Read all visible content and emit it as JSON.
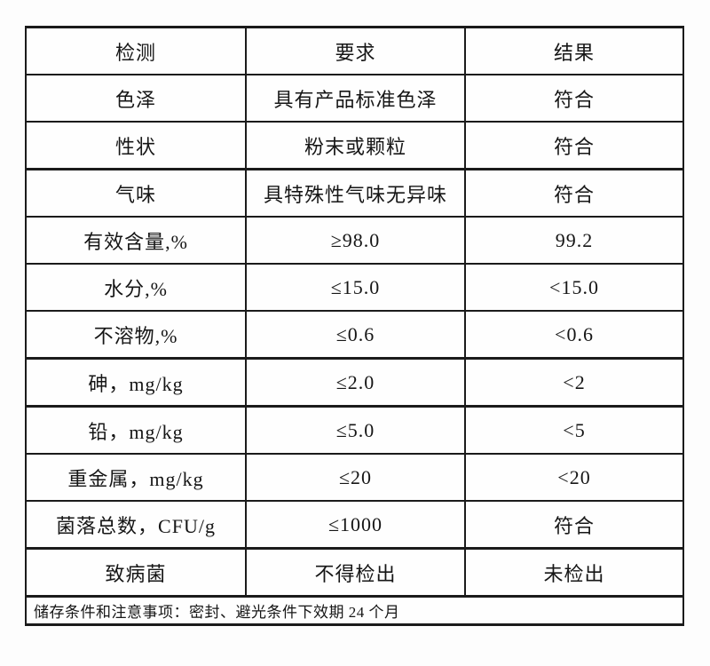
{
  "page": {
    "background_color": "#fdfdfd",
    "border_color": "#1b1b1b",
    "text_color": "#161616"
  },
  "table": {
    "header": {
      "test": "检测",
      "requirement": "要求",
      "result": "结果"
    },
    "rows": [
      {
        "test": "色泽",
        "requirement": "具有产品标准色泽",
        "result": "符合"
      },
      {
        "test": "性状",
        "requirement": "粉末或颗粒",
        "result": "符合"
      },
      {
        "test": "气味",
        "requirement": "具特殊性气味无异味",
        "result": "符合"
      },
      {
        "test": "有效含量,%",
        "requirement": "≥98.0",
        "result": "99.2"
      },
      {
        "test": "水分,%",
        "requirement": "≤15.0",
        "result": "<15.0"
      },
      {
        "test": "不溶物,%",
        "requirement": "≤0.6",
        "result": "<0.6"
      },
      {
        "test": "砷，mg/kg",
        "requirement": "≤2.0",
        "result": "<2"
      },
      {
        "test": "铅，mg/kg",
        "requirement": "≤5.0",
        "result": "<5"
      },
      {
        "test": "重金属，mg/kg",
        "requirement": "≤20",
        "result": "<20"
      },
      {
        "test": "菌落总数，CFU/g",
        "requirement": "≤1000",
        "result": "符合"
      },
      {
        "test": "致病菌",
        "requirement": "不得检出",
        "result": "未检出"
      }
    ],
    "footer_note": "储存条件和注意事项：密封、避光条件下效期 24 个月"
  }
}
